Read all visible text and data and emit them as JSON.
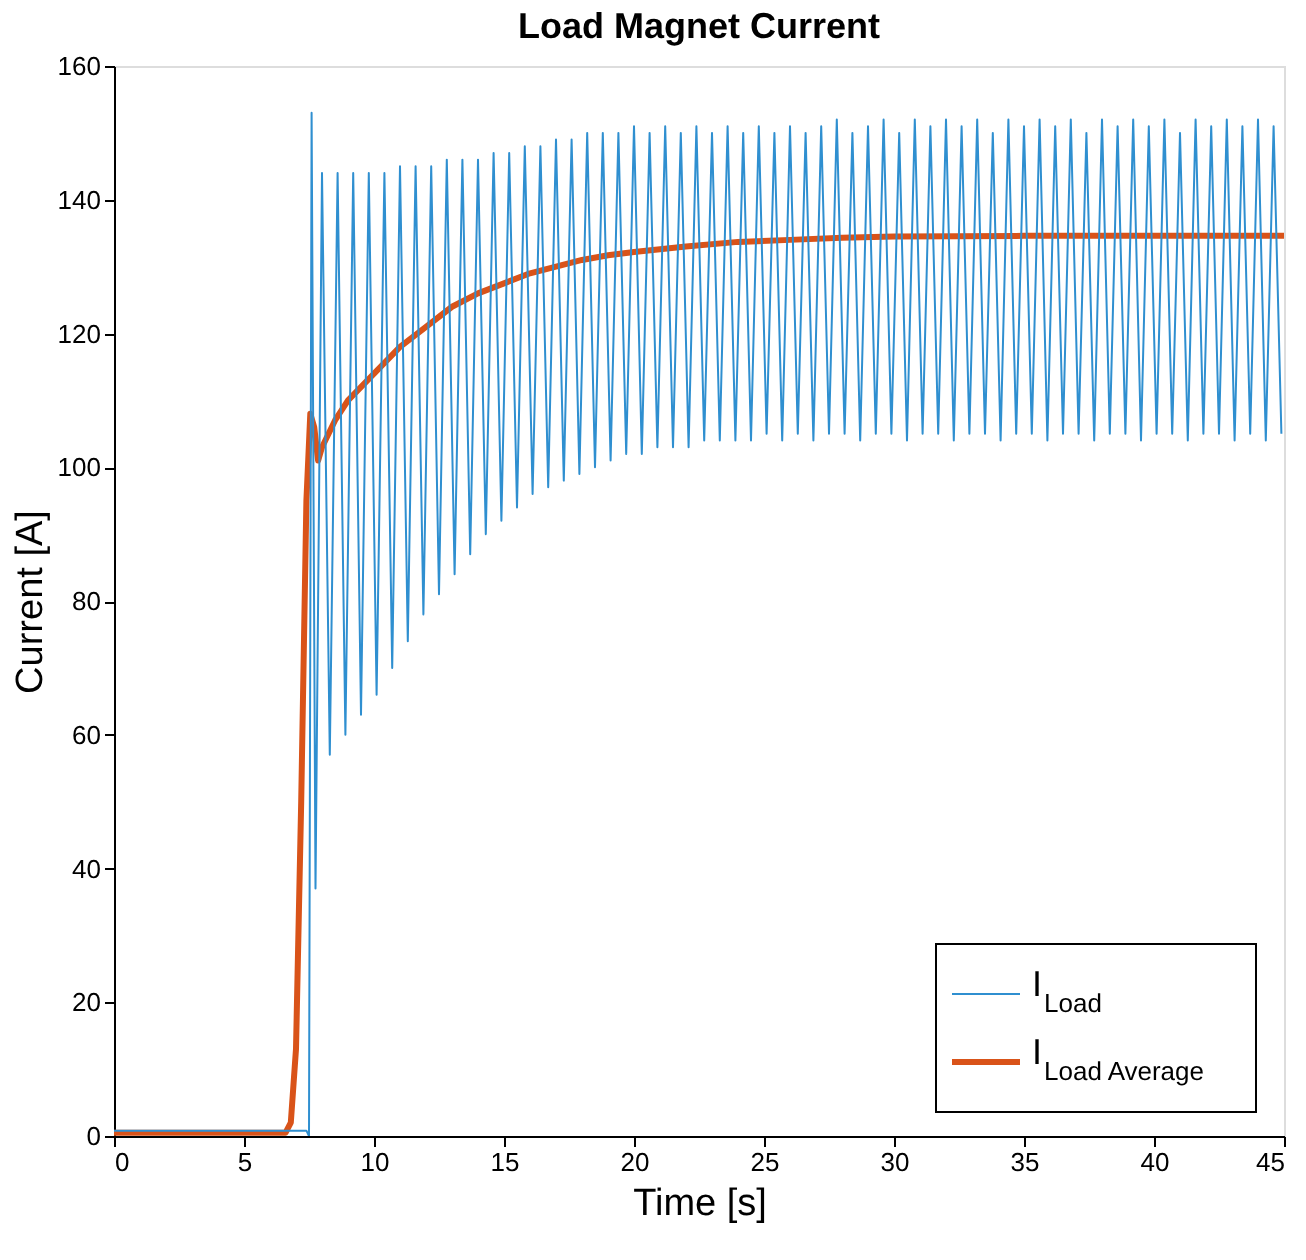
{
  "chart_data": {
    "type": "line",
    "title": "Load Magnet Current",
    "xlabel": "Time [s]",
    "ylabel": "Current [A]",
    "xlim": [
      0,
      45
    ],
    "xticks": [
      0,
      5,
      10,
      15,
      20,
      25,
      30,
      35,
      40,
      45
    ],
    "ylim": [
      0,
      160
    ],
    "yticks": [
      0,
      20,
      40,
      60,
      80,
      100,
      120,
      140,
      160
    ],
    "grid": false,
    "legend": "bottom right",
    "line_style": "solid",
    "marker": "none",
    "series": [
      {
        "name": "I$_{Load}$",
        "color": "#2f8fd0",
        "x": [
          0,
          2,
          4,
          6,
          7.4,
          7.5,
          7.6,
          7.75,
          8.0,
          8.3,
          8.6,
          8.9,
          9.2,
          9.5,
          9.8,
          10.1,
          10.4,
          10.7,
          11.0,
          11.3,
          11.6,
          11.9,
          12.2,
          12.5,
          12.8,
          13.1,
          13.4,
          13.7,
          14.0,
          14.3,
          14.6,
          14.9,
          15.2,
          15.5,
          15.8,
          16.1,
          16.4,
          16.7,
          17.0,
          17.3,
          17.6,
          17.9,
          18.2,
          18.5,
          18.8,
          19.1,
          19.4,
          19.7,
          20.0,
          20.3,
          20.6,
          20.9,
          21.2,
          21.5,
          21.8,
          22.1,
          22.4,
          22.7,
          23.0,
          23.3,
          23.6,
          23.9,
          24.2,
          24.5,
          24.8,
          25.1,
          25.4,
          25.7,
          26.0,
          26.3,
          26.6,
          26.9,
          27.2,
          27.5,
          27.8,
          28.1,
          28.4,
          28.7,
          29.0,
          29.3,
          29.6,
          29.9,
          30.2,
          30.5,
          30.8,
          31.1,
          31.4,
          31.7,
          32.0,
          32.3,
          32.6,
          32.9,
          33.2,
          33.5,
          33.8,
          34.1,
          34.4,
          34.7,
          35.0,
          35.3,
          35.6,
          35.9,
          36.2,
          36.5,
          36.8,
          37.1,
          37.4,
          37.7,
          38.0,
          38.3,
          38.6,
          38.9,
          39.2,
          39.5,
          39.8,
          40.1,
          40.4,
          40.7,
          41.0,
          41.3,
          41.6,
          41.9,
          42.2,
          42.5,
          42.8,
          43.1,
          43.4,
          43.7,
          44.0,
          44.3,
          44.6,
          44.9
        ],
        "values": [
          0.8,
          0.8,
          0.8,
          0.8,
          0.8,
          0,
          153,
          37,
          144,
          57,
          144,
          60,
          144,
          63,
          144,
          66,
          144,
          70,
          145,
          74,
          145,
          78,
          145,
          81,
          146,
          84,
          146,
          87,
          146,
          90,
          147,
          92,
          147,
          94,
          148,
          96,
          148,
          97,
          149,
          98,
          149,
          99,
          150,
          100,
          150,
          101,
          150,
          102,
          151,
          102,
          150,
          103,
          151,
          103,
          150,
          103,
          151,
          104,
          150,
          104,
          151,
          104,
          150,
          104,
          151,
          105,
          150,
          104,
          151,
          105,
          150,
          104,
          151,
          105,
          152,
          105,
          150,
          104,
          151,
          105,
          152,
          105,
          150,
          104,
          152,
          105,
          151,
          105,
          152,
          104,
          151,
          105,
          152,
          105,
          150,
          104,
          152,
          105,
          151,
          105,
          152,
          104,
          151,
          105,
          152,
          105,
          150,
          104,
          152,
          105,
          151,
          105,
          152,
          104,
          151,
          105,
          152,
          105,
          150,
          104,
          152,
          105,
          151,
          105,
          152,
          104,
          151,
          105,
          152,
          104,
          151,
          105
        ]
      },
      {
        "name": "I$_{Load Average}$",
        "color": "#d95319",
        "x": [
          0,
          3,
          6.6,
          6.8,
          7.0,
          7.2,
          7.4,
          7.55,
          7.7,
          7.85,
          8.0,
          8.5,
          9,
          10,
          11,
          12,
          13,
          14,
          15,
          16,
          17,
          18,
          19,
          20,
          22,
          24,
          26,
          28,
          30,
          35,
          40,
          45
        ],
        "values": [
          0.5,
          0.5,
          0.5,
          2,
          13,
          50,
          95,
          108,
          106,
          101,
          103,
          107,
          110,
          114,
          118,
          121,
          124,
          126,
          127.5,
          129,
          130,
          131,
          131.7,
          132.2,
          133,
          133.7,
          134,
          134.3,
          134.5,
          134.6,
          134.6,
          134.6
        ]
      }
    ]
  }
}
